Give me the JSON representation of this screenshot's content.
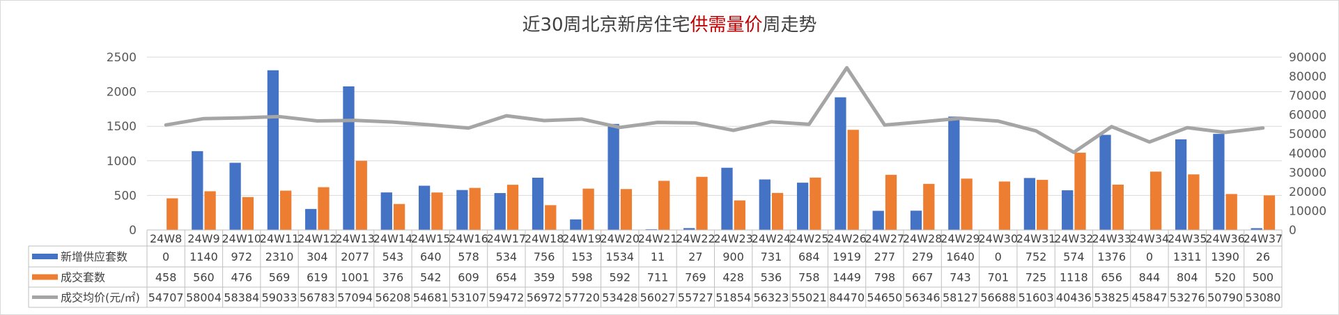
{
  "chart_data": {
    "type": "bar",
    "title_parts": [
      "近30周北京新房住宅",
      "供需量价",
      "周走势"
    ],
    "categories": [
      "24W8",
      "24W9",
      "24W10",
      "24W11",
      "24W12",
      "24W13",
      "24W14",
      "24W15",
      "24W16",
      "24W17",
      "24W18",
      "24W19",
      "24W20",
      "24W21",
      "24W22",
      "24W23",
      "24W24",
      "24W25",
      "24W26",
      "24W27",
      "24W28",
      "24W29",
      "24W30",
      "24W31",
      "24W32",
      "24W33",
      "24W34",
      "24W35",
      "24W36",
      "24W37"
    ],
    "series": [
      {
        "name": "新增供应套数",
        "type": "bar",
        "axis": "left",
        "color": "#4472c4",
        "values": [
          0,
          1140,
          972,
          2310,
          304,
          2077,
          543,
          640,
          578,
          534,
          756,
          153,
          1534,
          11,
          27,
          900,
          731,
          684,
          1919,
          277,
          279,
          1640,
          0,
          752,
          574,
          1376,
          0,
          1311,
          1390,
          26
        ]
      },
      {
        "name": "成交套数",
        "type": "bar",
        "axis": "left",
        "color": "#ed7d31",
        "values": [
          458,
          560,
          476,
          569,
          619,
          1001,
          376,
          542,
          609,
          654,
          359,
          598,
          592,
          711,
          769,
          428,
          536,
          758,
          1449,
          798,
          667,
          743,
          701,
          725,
          1118,
          656,
          844,
          804,
          520,
          500
        ]
      },
      {
        "name": "成交均价(元/㎡)",
        "type": "line",
        "axis": "right",
        "color": "#a5a5a5",
        "values": [
          54707,
          58004,
          58384,
          59033,
          56783,
          57094,
          56208,
          54681,
          53107,
          59472,
          56972,
          57720,
          53428,
          56027,
          55727,
          51854,
          56323,
          55021,
          84470,
          54650,
          56346,
          58127,
          56688,
          51603,
          40436,
          53825,
          45847,
          53276,
          50790,
          53080
        ]
      }
    ],
    "y_left": {
      "range": [
        0,
        2500
      ],
      "ticks": [
        0,
        500,
        1000,
        1500,
        2000,
        2500
      ]
    },
    "y_right": {
      "range": [
        0,
        90000
      ],
      "ticks": [
        0,
        10000,
        20000,
        30000,
        40000,
        50000,
        60000,
        70000,
        80000,
        90000
      ]
    },
    "grid": true,
    "legend": "data-table"
  }
}
